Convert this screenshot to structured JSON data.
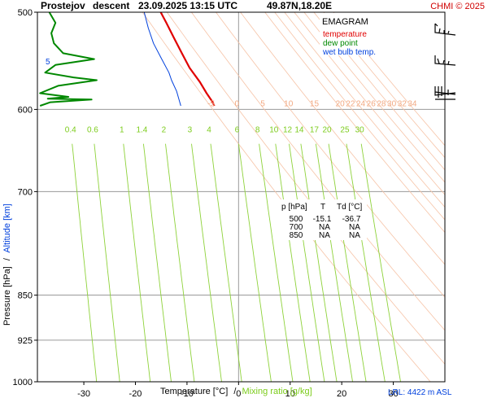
{
  "header": {
    "station": "Prostejov",
    "mode": "descent",
    "datetime": "23.09.2025 13:15 UTC",
    "coords": "49.87N,18.20E",
    "copyright": "CHMI © 2025"
  },
  "legend": {
    "title": "EMAGRAM",
    "items": [
      {
        "label": "temperature",
        "color": "#e00000"
      },
      {
        "label": "dew point",
        "color": "#008800"
      },
      {
        "label": "wet bulb temp.",
        "color": "#0040dd"
      }
    ]
  },
  "table": {
    "headers": [
      "p [hPa]",
      "T",
      "Td [°C]"
    ],
    "rows": [
      [
        "500",
        "-15.1",
        "-36.7"
      ],
      [
        "700",
        "NA",
        "NA"
      ],
      [
        "850",
        "NA",
        "NA"
      ]
    ]
  },
  "axes": {
    "y_title_pressure": "Pressure [hPa]",
    "y_title_sep": "/",
    "y_title_altitude": "Altitude [km]",
    "x_title_temperature": "Temperature [°C]",
    "x_title_sep": "/",
    "x_title_mixing": "Mixing ratio [g/kg]",
    "altitude_marker": "5",
    "lrl": "LRL: 4422 m ASL"
  },
  "chart_data": {
    "type": "line",
    "title": "EMAGRAM",
    "xlabel": "Temperature [°C]",
    "ylabel": "Pressure [hPa]",
    "xlim": [
      -39,
      40
    ],
    "ylim": [
      1000,
      500
    ],
    "y_scale": "log",
    "x_ticks": [
      -30,
      -20,
      -10,
      0,
      10,
      20,
      30
    ],
    "y_ticks": [
      500,
      600,
      700,
      850,
      925,
      1000
    ],
    "grid": true,
    "series": [
      {
        "name": "temperature",
        "color": "#e00000",
        "points": [
          [
            -15.1,
            500
          ],
          [
            -14.0,
            510
          ],
          [
            -12.5,
            525
          ],
          [
            -11.0,
            540
          ],
          [
            -9.5,
            555
          ],
          [
            -7.5,
            570
          ],
          [
            -6.2,
            582
          ],
          [
            -5.0,
            592
          ],
          [
            -4.7,
            596
          ]
        ]
      },
      {
        "name": "dew point",
        "color": "#008800",
        "points": [
          [
            -36.7,
            500
          ],
          [
            -35.5,
            510
          ],
          [
            -36.3,
            520
          ],
          [
            -35.8,
            530
          ],
          [
            -34.0,
            540
          ],
          [
            -28.0,
            546
          ],
          [
            -35.5,
            552
          ],
          [
            -37.5,
            560
          ],
          [
            -32.0,
            565
          ],
          [
            -27.5,
            568
          ],
          [
            -35.0,
            574
          ],
          [
            -38.5,
            582
          ],
          [
            -33.0,
            586
          ],
          [
            -37.0,
            588
          ],
          [
            -28.5,
            589
          ],
          [
            -36.5,
            592
          ],
          [
            -38.5,
            596
          ]
        ]
      },
      {
        "name": "wet bulb temp.",
        "color": "#0040dd",
        "points": [
          [
            -18.3,
            500
          ],
          [
            -17.5,
            515
          ],
          [
            -16.5,
            530
          ],
          [
            -15.0,
            545
          ],
          [
            -13.5,
            560
          ],
          [
            -13.0,
            568
          ],
          [
            -12.0,
            580
          ],
          [
            -11.5,
            590
          ],
          [
            -11.2,
            596
          ]
        ]
      }
    ],
    "dry_adiabat_labels": [
      "-5",
      "0",
      "5",
      "10",
      "15",
      "20",
      "22",
      "24",
      "26",
      "28",
      "30",
      "32",
      "34"
    ],
    "mixing_ratio_labels": [
      "0.4",
      "0.6",
      "1",
      "1.4",
      "2",
      "3",
      "4",
      "6",
      "8",
      "10",
      "12",
      "14",
      "17",
      "20",
      "25",
      "30"
    ],
    "mixing_ratio_values": [
      0.4,
      0.6,
      1,
      1.4,
      2,
      3,
      4,
      6,
      8,
      10,
      12,
      14,
      17,
      20,
      25,
      30
    ]
  }
}
